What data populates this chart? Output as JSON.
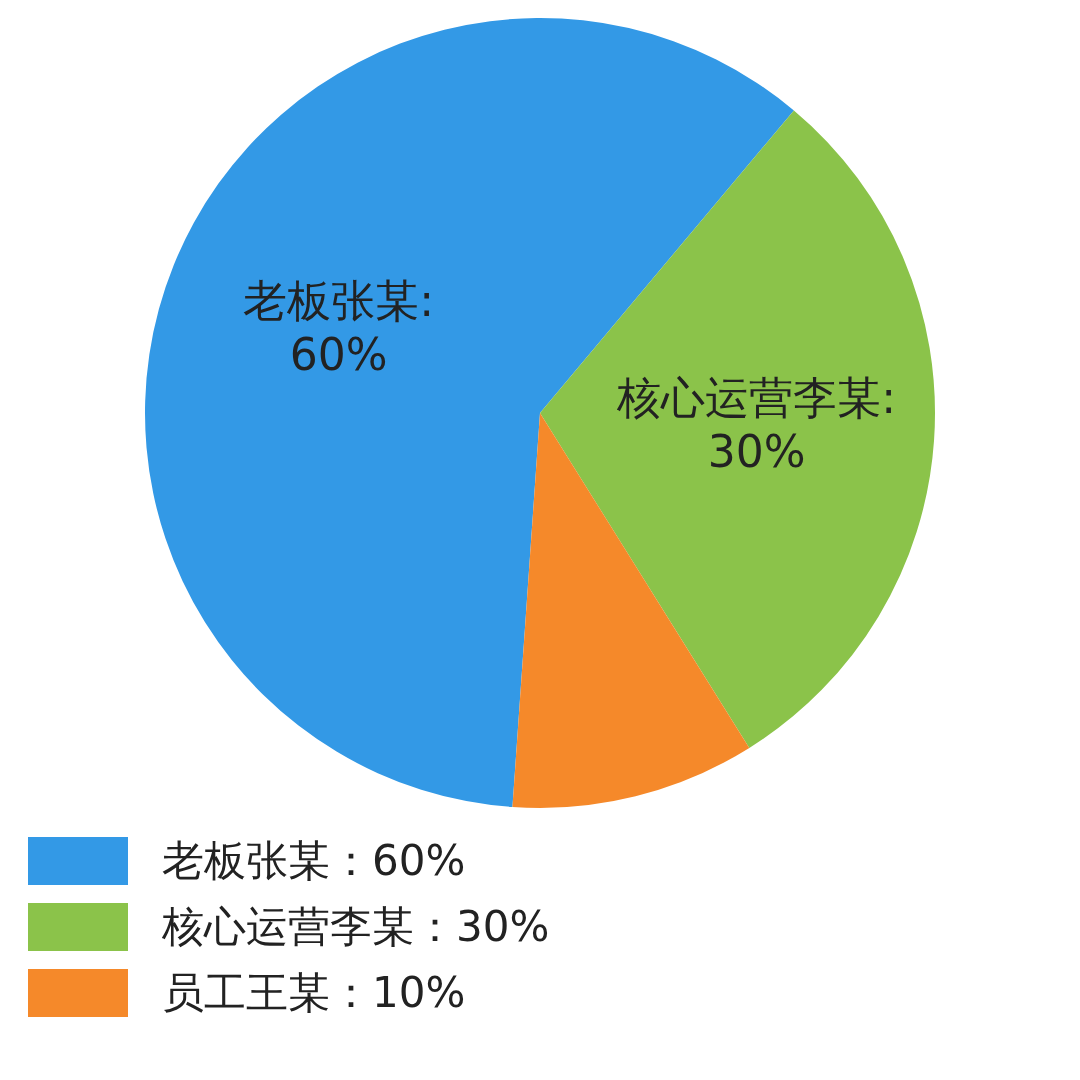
{
  "chart_data": {
    "type": "pie",
    "categories": [
      "老板张某：60%",
      "核心运营李某：30%",
      "员工王某：10%"
    ],
    "values": [
      60,
      30,
      10
    ],
    "colors": [
      "#3399e6",
      "#8bc34a",
      "#f5892a"
    ],
    "annotations": [
      "老板张某:\n60%",
      "核心运营李某:\n30%"
    ],
    "legend": "bottom"
  }
}
